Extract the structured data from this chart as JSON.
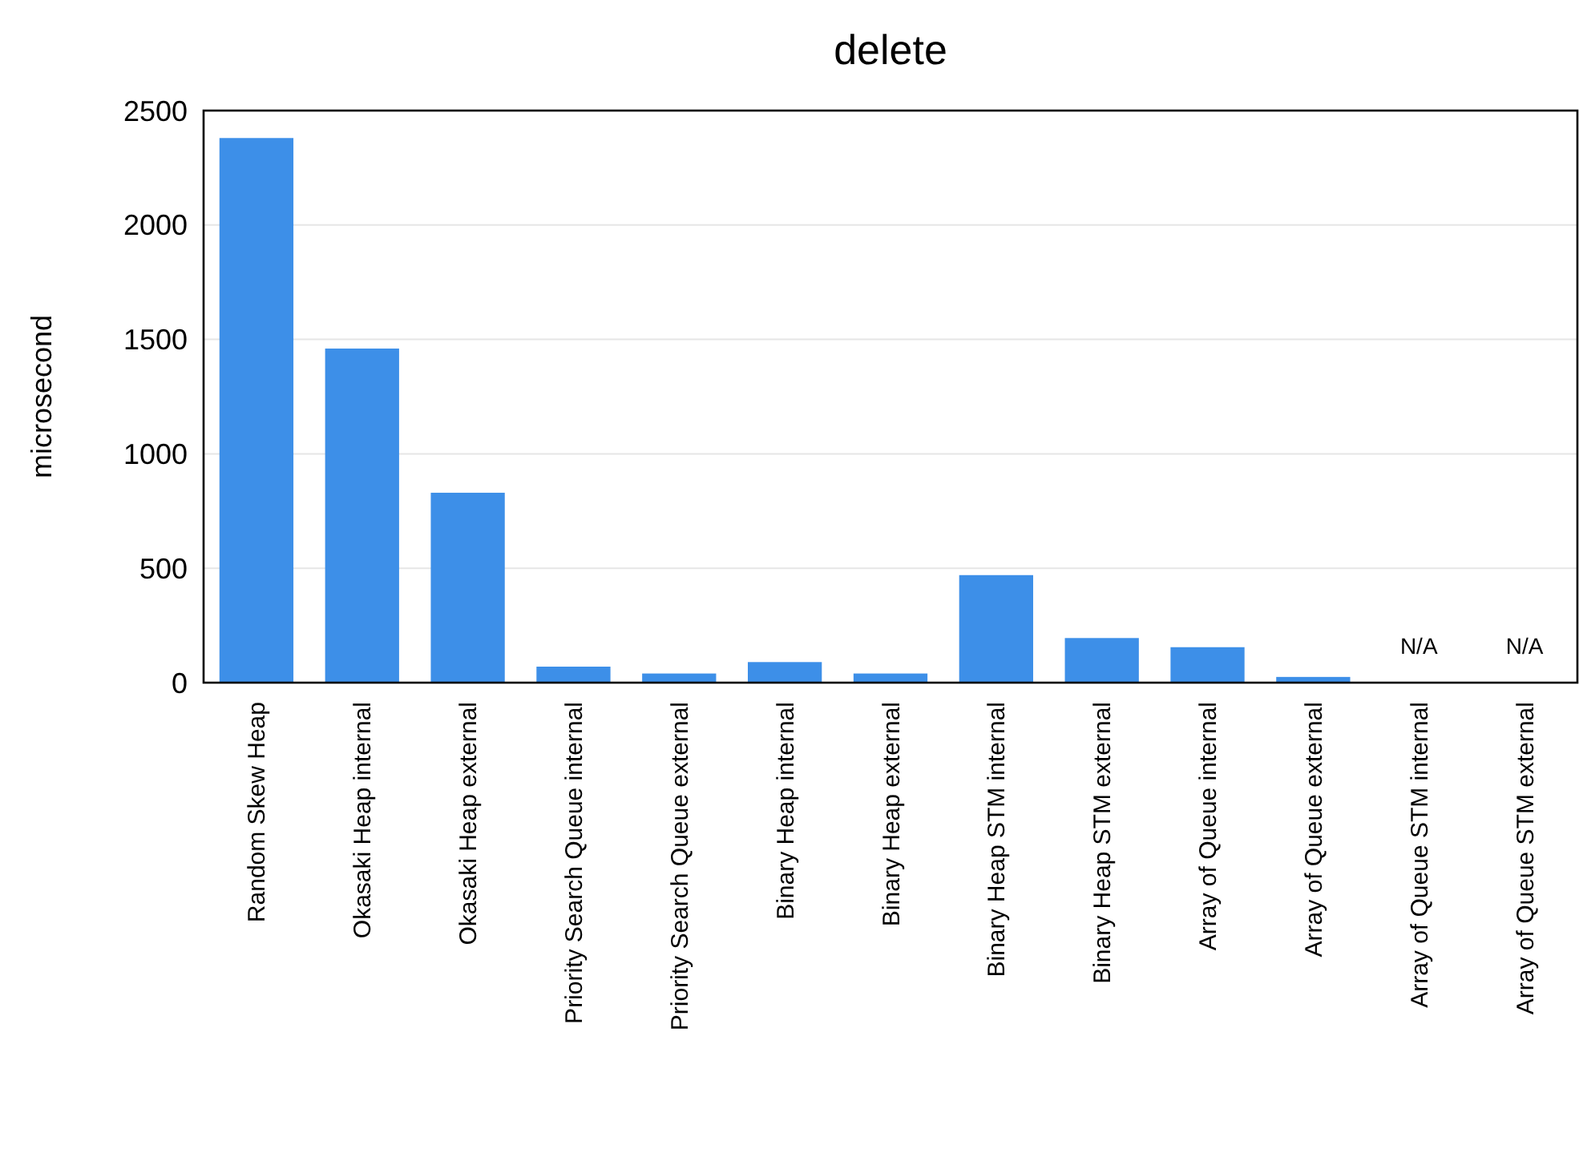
{
  "chart_data": {
    "type": "bar",
    "title": "delete",
    "ylabel": "microsecond",
    "categories": [
      "Random Skew Heap",
      "Okasaki Heap internal",
      "Okasaki Heap external",
      "Priority Search Queue internal",
      "Priority Search Queue external",
      "Binary Heap internal",
      "Binary Heap external",
      "Binary Heap STM internal",
      "Binary Heap STM external",
      "Array of Queue internal",
      "Array of Queue external",
      "Array of Queue STM internal",
      "Array of Queue STM external"
    ],
    "values": [
      2380,
      1460,
      830,
      70,
      40,
      90,
      40,
      470,
      195,
      155,
      25,
      null,
      null
    ],
    "value_labels": [
      null,
      null,
      null,
      null,
      null,
      null,
      null,
      null,
      null,
      null,
      null,
      "N/A",
      "N/A"
    ],
    "color": "#3d8fe8",
    "ylim": [
      0,
      2500
    ],
    "yticks": [
      0,
      500,
      1000,
      1500,
      2000,
      2500
    ],
    "grid": "y"
  }
}
